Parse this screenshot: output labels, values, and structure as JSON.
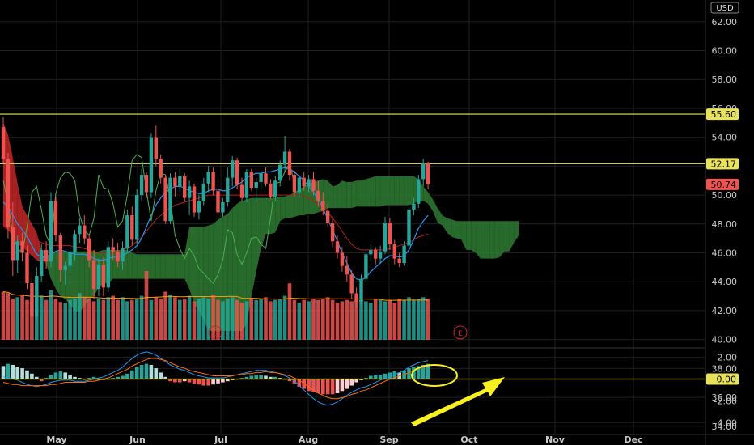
{
  "chart_data": {
    "type": "candlestick",
    "price_axis": {
      "currency": "USD",
      "ticks": [
        "62.00",
        "60.00",
        "58.00",
        "56.00",
        "54.00",
        "52.00",
        "50.00",
        "48.00",
        "46.00",
        "44.00",
        "42.00",
        "40.00",
        "38.00",
        "36.00",
        "34.00"
      ],
      "range": [
        32.7,
        63.5
      ]
    },
    "time_axis": {
      "labels": [
        "May",
        "Jun",
        "Jul",
        "Aug",
        "Sep",
        "Oct",
        "Nov",
        "Dec"
      ]
    },
    "price_labels": [
      {
        "value": 55.6,
        "text": "55.60",
        "style": "yellow"
      },
      {
        "value": 52.17,
        "text": "52.17",
        "style": "yellow"
      },
      {
        "value": 50.74,
        "text": "50.74",
        "style": "red"
      }
    ],
    "horizontal_lines": [
      {
        "value": 55.6,
        "color": "#e8e35a"
      },
      {
        "value": 52.17,
        "color": "#e8e35a"
      }
    ],
    "candles": [
      [
        54.7,
        55.4,
        52.2,
        52.5
      ],
      [
        52.5,
        52.9,
        47.0,
        47.8
      ],
      [
        47.8,
        49.5,
        44.4,
        45.5
      ],
      [
        45.5,
        47.2,
        44.6,
        46.8
      ],
      [
        46.8,
        47.4,
        45.4,
        46.0
      ],
      [
        46.0,
        46.5,
        43.5,
        43.9
      ],
      [
        43.9,
        44.6,
        41.2,
        41.6
      ],
      [
        41.6,
        45.0,
        41.3,
        44.4
      ],
      [
        44.4,
        46.6,
        44.0,
        46.2
      ],
      [
        46.2,
        46.8,
        44.9,
        45.4
      ],
      [
        45.4,
        50.2,
        45.0,
        49.6
      ],
      [
        49.6,
        49.9,
        46.8,
        47.2
      ],
      [
        47.2,
        47.4,
        44.0,
        44.8
      ],
      [
        44.8,
        45.4,
        43.8,
        45.1
      ],
      [
        45.1,
        46.3,
        44.6,
        46.0
      ],
      [
        46.0,
        47.6,
        45.5,
        47.3
      ],
      [
        47.3,
        48.4,
        46.7,
        47.9
      ],
      [
        47.9,
        48.6,
        46.6,
        47.0
      ],
      [
        47.0,
        47.3,
        45.0,
        45.5
      ],
      [
        45.5,
        46.2,
        42.8,
        43.5
      ],
      [
        43.5,
        45.6,
        43.0,
        45.2
      ],
      [
        45.2,
        45.7,
        43.0,
        43.6
      ],
      [
        43.6,
        46.8,
        43.3,
        46.4
      ],
      [
        46.4,
        47.0,
        45.5,
        46.1
      ],
      [
        46.1,
        46.7,
        45.0,
        45.4
      ],
      [
        45.4,
        46.8,
        44.8,
        46.3
      ],
      [
        46.3,
        49.0,
        46.0,
        48.6
      ],
      [
        48.6,
        49.2,
        46.5,
        46.9
      ],
      [
        46.9,
        50.4,
        46.6,
        50.0
      ],
      [
        50.0,
        51.8,
        49.6,
        51.4
      ],
      [
        51.4,
        51.6,
        49.8,
        50.2
      ],
      [
        50.2,
        54.3,
        49.8,
        54.0
      ],
      [
        54.0,
        54.8,
        52.0,
        52.5
      ],
      [
        52.5,
        52.8,
        50.8,
        51.2
      ],
      [
        51.2,
        51.4,
        48.0,
        48.2
      ],
      [
        48.2,
        51.5,
        48.0,
        51.2
      ],
      [
        51.2,
        51.6,
        49.9,
        50.6
      ],
      [
        50.6,
        51.8,
        50.2,
        51.3
      ],
      [
        51.3,
        51.5,
        49.6,
        49.8
      ],
      [
        49.8,
        51.0,
        48.6,
        50.6
      ],
      [
        50.6,
        50.8,
        48.5,
        48.8
      ],
      [
        48.8,
        50.0,
        48.3,
        49.6
      ],
      [
        49.6,
        51.2,
        49.3,
        50.8
      ],
      [
        50.8,
        52.0,
        50.2,
        51.6
      ],
      [
        51.6,
        51.9,
        50.0,
        50.3
      ],
      [
        50.3,
        50.6,
        48.6,
        48.8
      ],
      [
        48.8,
        49.8,
        48.5,
        49.5
      ],
      [
        49.5,
        51.9,
        49.2,
        51.2
      ],
      [
        51.2,
        52.7,
        50.6,
        52.4
      ],
      [
        52.4,
        52.6,
        50.4,
        50.7
      ],
      [
        50.7,
        51.2,
        49.6,
        49.8
      ],
      [
        49.8,
        51.8,
        49.5,
        51.6
      ],
      [
        51.6,
        51.8,
        50.3,
        50.5
      ],
      [
        50.5,
        51.2,
        49.6,
        50.9
      ],
      [
        50.9,
        51.7,
        50.4,
        51.5
      ],
      [
        51.5,
        51.9,
        50.6,
        50.8
      ],
      [
        50.8,
        51.1,
        49.7,
        49.9
      ],
      [
        49.9,
        51.3,
        49.6,
        51.0
      ],
      [
        51.0,
        52.4,
        50.6,
        52.1
      ],
      [
        52.1,
        54.1,
        51.6,
        53.0
      ],
      [
        53.0,
        53.2,
        51.0,
        51.4
      ],
      [
        51.4,
        51.7,
        49.9,
        50.2
      ],
      [
        50.2,
        51.4,
        49.8,
        51.2
      ],
      [
        51.2,
        51.6,
        50.3,
        50.6
      ],
      [
        50.6,
        51.4,
        50.2,
        51.1
      ],
      [
        51.1,
        51.6,
        50.0,
        50.3
      ],
      [
        50.3,
        51.0,
        49.2,
        49.6
      ],
      [
        49.6,
        50.2,
        48.6,
        48.9
      ],
      [
        48.9,
        49.4,
        47.8,
        48.1
      ],
      [
        48.1,
        48.5,
        46.4,
        46.8
      ],
      [
        46.8,
        47.2,
        45.6,
        46.0
      ],
      [
        46.0,
        46.4,
        44.7,
        45.1
      ],
      [
        45.1,
        45.8,
        44.0,
        44.5
      ],
      [
        44.5,
        44.8,
        42.8,
        43.2
      ],
      [
        43.2,
        43.6,
        42.2,
        42.6
      ],
      [
        42.6,
        44.5,
        42.4,
        44.2
      ],
      [
        44.2,
        46.2,
        44.0,
        45.9
      ],
      [
        45.9,
        46.6,
        45.4,
        46.2
      ],
      [
        46.2,
        46.4,
        45.2,
        45.6
      ],
      [
        45.6,
        46.5,
        45.3,
        46.1
      ],
      [
        46.1,
        48.5,
        45.9,
        48.1
      ],
      [
        48.1,
        48.4,
        46.2,
        46.6
      ],
      [
        46.6,
        46.9,
        45.2,
        45.6
      ],
      [
        45.6,
        46.0,
        45.0,
        45.3
      ],
      [
        45.3,
        46.8,
        45.1,
        46.5
      ],
      [
        46.5,
        49.3,
        46.3,
        49.0
      ],
      [
        49.0,
        49.8,
        48.6,
        49.4
      ],
      [
        49.4,
        51.4,
        49.1,
        51.1
      ],
      [
        51.1,
        52.5,
        50.6,
        52.2
      ],
      [
        52.2,
        52.3,
        50.4,
        50.74
      ]
    ],
    "cloud_band": {
      "span_a": [
        47.8,
        47.6,
        47.1,
        46.6,
        46.4,
        46.1,
        45.8,
        45.5,
        45.3,
        45.6,
        46.0,
        46.1,
        46.1,
        46.1,
        46.1,
        46.1,
        46.1,
        46.1,
        46.1,
        46.1,
        46.1,
        46.2,
        46.2,
        46.2,
        46.2,
        46.2,
        46.2,
        46.0,
        45.9,
        45.9,
        45.9,
        45.9,
        45.9,
        45.9,
        45.9,
        45.9,
        45.9,
        45.9,
        45.9,
        47.8,
        47.8,
        47.8,
        47.8,
        47.9,
        48.0,
        48.3,
        48.5,
        48.7,
        49.1,
        49.4,
        49.6,
        49.7,
        49.8,
        49.8,
        49.8,
        49.8,
        49.8,
        49.8,
        49.9,
        49.9,
        50.0,
        50.2,
        50.4,
        50.6,
        50.8,
        50.9,
        51.0,
        51.1,
        51.0,
        50.6,
        50.7,
        51.0,
        50.9,
        50.9,
        51.0,
        51.0,
        51.1,
        51.2,
        51.3,
        51.3,
        51.3,
        51.3,
        51.3,
        51.3,
        51.3,
        51.3,
        51.3,
        51.1,
        50.6,
        50.2,
        49.7,
        49.1,
        48.6,
        48.4,
        48.3,
        48.2,
        48.2,
        48.2,
        48.2,
        48.2,
        48.2,
        48.2,
        48.2,
        48.2,
        48.2,
        48.2,
        48.2,
        48.2,
        48.2
      ],
      "span_b": [
        55.0,
        54.2,
        52.6,
        50.8,
        49.2,
        48.6,
        48.0,
        47.4,
        46.2,
        45.2,
        44.2,
        43.5,
        43.0,
        42.8,
        42.4,
        42.0,
        41.9,
        42.3,
        42.7,
        43.0,
        43.6,
        43.9,
        43.9,
        44.2,
        44.2,
        44.2,
        44.2,
        44.2,
        44.2,
        44.2,
        44.2,
        44.2,
        44.2,
        44.2,
        44.2,
        44.2,
        44.2,
        44.2,
        44.2,
        43.5,
        42.5,
        42.0,
        41.3,
        40.6,
        40.6,
        40.6,
        40.6,
        40.6,
        40.6,
        40.6,
        40.6,
        41.1,
        43.0,
        44.7,
        46.3,
        47.3,
        47.3,
        47.4,
        48.2,
        48.4,
        48.4,
        48.5,
        48.6,
        48.6,
        48.7,
        48.7,
        48.8,
        48.9,
        49.1,
        49.1,
        49.1,
        49.1,
        49.1,
        49.1,
        49.2,
        49.2,
        49.2,
        49.2,
        49.2,
        49.2,
        49.3,
        49.3,
        49.3,
        49.3,
        49.3,
        49.3,
        49.4,
        49.6,
        49.6,
        49.4,
        48.9,
        48.1,
        47.9,
        47.4,
        47.1,
        47.0,
        46.9,
        46.2,
        46.2,
        46.0,
        45.6,
        45.6,
        45.6,
        45.6,
        45.7,
        46.1,
        46.1,
        46.7,
        47.2
      ]
    },
    "conversion_line": [
      49.5,
      49.2,
      48.6,
      48.0,
      47.6,
      47.1,
      46.5,
      45.9,
      45.7,
      45.7,
      45.9,
      46.1,
      46.2,
      46.1,
      46.0,
      45.9,
      45.9,
      45.9,
      45.8,
      45.6,
      45.5,
      45.5,
      45.6,
      45.7,
      45.7,
      45.8,
      46.0,
      46.2,
      46.5,
      47.0,
      47.8,
      48.6,
      49.3,
      49.8,
      50.2,
      50.4,
      50.6,
      50.6,
      50.5,
      50.3,
      50.2,
      50.1,
      50.1,
      50.3,
      50.4,
      50.4,
      50.3,
      50.3,
      50.5,
      50.7,
      50.9,
      51.2,
      51.4,
      51.5,
      51.5,
      51.6,
      51.6,
      51.7,
      51.8,
      51.9,
      51.8,
      51.6,
      51.3,
      51.0,
      50.6,
      50.2,
      49.7,
      49.1,
      48.3,
      47.6,
      46.8,
      46.0,
      45.3,
      44.6,
      44.2,
      44.1,
      44.3,
      44.7,
      45.0,
      45.3,
      45.6,
      45.8,
      45.8,
      45.7,
      45.8,
      46.2,
      46.9,
      47.7,
      48.2,
      48.6
    ],
    "base_line": [
      48.5,
      48.3,
      48.0,
      47.7,
      47.5,
      47.3,
      47.1,
      46.9,
      46.7,
      46.6,
      46.5,
      46.5,
      46.5,
      46.5,
      46.5,
      46.4,
      46.4,
      46.3,
      46.2,
      46.1,
      46.0,
      46.0,
      46.0,
      46.0,
      46.1,
      46.2,
      46.3,
      46.5,
      46.8,
      47.1,
      47.5,
      47.9,
      48.3,
      48.6,
      48.9,
      49.1,
      49.3,
      49.4,
      49.5,
      49.6,
      49.7,
      49.8,
      49.9,
      50.0,
      50.0,
      50.0,
      50.0,
      50.0,
      50.0,
      50.0,
      50.0,
      50.0,
      50.0,
      50.0,
      50.0,
      50.0,
      50.0,
      50.0,
      50.0,
      50.0,
      50.0,
      50.0,
      50.0,
      49.9,
      49.8,
      49.6,
      49.4,
      49.1,
      48.8,
      48.4,
      48.0,
      47.5,
      47.0,
      46.6,
      46.3,
      46.2,
      46.2,
      46.2,
      46.2,
      46.2,
      46.2,
      46.3,
      46.4,
      46.5,
      46.6,
      46.7,
      46.9,
      47.1,
      47.2,
      47.3
    ],
    "lagging_line": [
      51.0,
      49.5,
      47.2,
      46.3,
      46.0,
      47.8,
      50.2,
      50.6,
      49.0,
      47.2,
      46.5,
      50.1,
      51.2,
      51.6,
      51.5,
      51.0,
      48.6,
      47.6,
      47.2,
      48.4,
      51.4,
      50.5,
      50.4,
      49.4,
      47.8,
      48.2,
      50.0,
      52.4,
      52.8,
      52.6,
      50.3,
      48.2,
      50.3,
      51.5,
      51.4,
      49.7,
      47.2,
      46.3,
      45.6,
      46.3,
      45.8,
      44.9,
      44.6,
      44.2,
      43.9,
      44.5,
      45.5,
      47.6,
      47.4,
      45.9,
      45.2,
      46.0,
      47.0,
      47.1,
      46.6,
      46.3,
      48.4,
      50.8,
      50.9,
      51.6,
      52.2,
      50.8
    ],
    "volume": {
      "ticks": [
        "38.00",
        "36.00",
        "34.00"
      ],
      "bars": [
        70,
        68,
        60,
        62,
        66,
        58,
        60,
        62,
        64,
        58,
        72,
        60,
        55,
        54,
        58,
        60,
        68,
        62,
        60,
        56,
        60,
        58,
        62,
        64,
        58,
        62,
        56,
        58,
        60,
        64,
        100,
        58,
        62,
        60,
        70,
        66,
        62,
        58,
        60,
        64,
        56,
        60,
        62,
        60,
        66,
        58,
        56,
        60,
        62,
        58,
        54,
        56,
        60,
        58,
        60,
        62,
        56,
        58,
        60,
        64,
        82,
        58,
        54,
        58,
        56,
        60,
        58,
        60,
        62,
        58,
        54,
        56,
        58,
        56,
        60,
        58,
        56,
        54,
        60,
        58,
        56,
        58,
        54,
        60,
        58,
        62,
        58,
        60,
        62,
        60
      ],
      "earnings_markers": [
        "E",
        "E"
      ]
    },
    "macd": {
      "ticks": [
        "2.00",
        "0.00",
        "-2.00",
        "-4.00"
      ],
      "zero_label": "0.00",
      "histogram": [
        1.2,
        1.4,
        1.3,
        1.1,
        1.0,
        0.8,
        0.5,
        0.2,
        -0.2,
        0.1,
        0.4,
        0.6,
        0.7,
        0.6,
        0.4,
        0.2,
        0.1,
        0.0,
        0.1,
        0.2,
        0.0,
        -0.1,
        0.0,
        0.1,
        0.2,
        0.3,
        0.5,
        0.8,
        1.1,
        1.3,
        1.4,
        1.3,
        1.0,
        0.6,
        0.2,
        -0.2,
        -0.3,
        -0.3,
        -0.2,
        -0.3,
        -0.4,
        -0.5,
        -0.6,
        -0.6,
        -0.5,
        -0.4,
        -0.3,
        -0.2,
        -0.1,
        0.0,
        0.1,
        0.2,
        0.3,
        0.4,
        0.4,
        0.3,
        0.2,
        0.2,
        0.1,
        0.0,
        -0.2,
        -0.4,
        -0.7,
        -0.9,
        -1.1,
        -1.2,
        -1.3,
        -1.4,
        -1.4,
        -1.4,
        -1.3,
        -1.1,
        -0.9,
        -0.6,
        -0.3,
        -0.1,
        0.1,
        0.3,
        0.4,
        0.4,
        0.5,
        0.6,
        0.7,
        0.6,
        0.8,
        1.0,
        1.1,
        1.2,
        1.3,
        1.4
      ],
      "macd_line": [
        0.2,
        0.1,
        0.0,
        -0.1,
        -0.3,
        -0.5,
        -0.6,
        -0.7,
        -0.6,
        -0.5,
        -0.3,
        -0.2,
        -0.1,
        -0.1,
        -0.1,
        -0.2,
        -0.2,
        -0.2,
        -0.1,
        0.0,
        0.1,
        0.2,
        0.4,
        0.6,
        0.8,
        1.1,
        1.5,
        1.9,
        2.2,
        2.4,
        2.5,
        2.4,
        2.2,
        1.9,
        1.6,
        1.3,
        1.1,
        0.9,
        0.8,
        0.6,
        0.4,
        0.3,
        0.2,
        0.1,
        0.1,
        0.1,
        0.1,
        0.2,
        0.3,
        0.4,
        0.5,
        0.6,
        0.7,
        0.8,
        0.8,
        0.8,
        0.7,
        0.6,
        0.5,
        0.3,
        0.1,
        -0.2,
        -0.6,
        -1.0,
        -1.4,
        -1.8,
        -2.1,
        -2.3,
        -2.4,
        -2.3,
        -2.1,
        -1.8,
        -1.5,
        -1.2,
        -1.0,
        -0.8,
        -0.7,
        -0.5,
        -0.3,
        -0.1,
        0.1,
        0.3,
        0.4,
        0.6,
        0.8,
        1.1,
        1.3,
        1.5,
        1.6,
        1.7
      ],
      "signal_line": [
        -0.3,
        -0.4,
        -0.5,
        -0.5,
        -0.6,
        -0.6,
        -0.6,
        -0.6,
        -0.6,
        -0.6,
        -0.5,
        -0.5,
        -0.4,
        -0.3,
        -0.3,
        -0.3,
        -0.3,
        -0.3,
        -0.2,
        -0.2,
        -0.1,
        0.0,
        0.1,
        0.3,
        0.5,
        0.7,
        0.9,
        1.2,
        1.4,
        1.6,
        1.8,
        1.9,
        1.9,
        1.8,
        1.7,
        1.5,
        1.3,
        1.1,
        1.0,
        0.8,
        0.7,
        0.6,
        0.5,
        0.4,
        0.3,
        0.3,
        0.3,
        0.3,
        0.3,
        0.4,
        0.4,
        0.5,
        0.5,
        0.6,
        0.6,
        0.7,
        0.6,
        0.6,
        0.5,
        0.4,
        0.3,
        0.1,
        -0.1,
        -0.4,
        -0.7,
        -1.0,
        -1.3,
        -1.5,
        -1.7,
        -1.8,
        -1.8,
        -1.7,
        -1.6,
        -1.4,
        -1.3,
        -1.1,
        -1.0,
        -0.8,
        -0.6,
        -0.4,
        -0.2,
        0.0,
        0.1,
        0.3,
        0.4,
        0.6,
        0.8,
        1.0,
        1.1,
        1.2
      ]
    },
    "colors": {
      "up": "#26a69a",
      "down": "#ef5350",
      "cloud_green": "#2e7d32",
      "cloud_red": "#c62828",
      "level_line": "#e8e35a",
      "conversion": "#2196f3",
      "base": "#b71c1c",
      "lagging": "#4caf50",
      "volume_ma": "#ff9800",
      "arrow": "#f7ef1e"
    }
  }
}
